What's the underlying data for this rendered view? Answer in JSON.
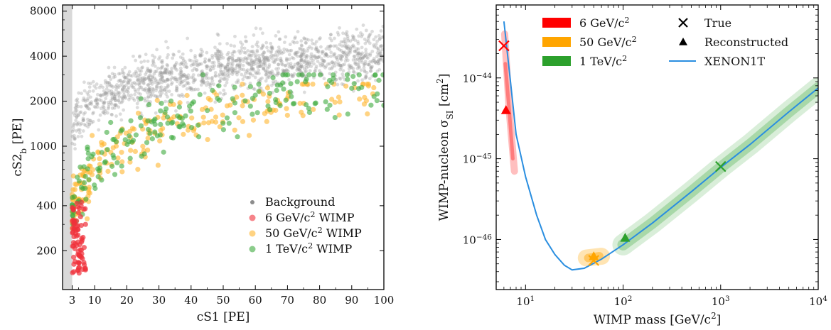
{
  "chart_data": [
    {
      "type": "scatter",
      "title": "",
      "xlabel": "cS1 [PE]",
      "ylabel": "cS2",
      "ylabel_sub": "b",
      "ylabel_unit": " [PE]",
      "xlim": [
        0,
        100
      ],
      "ylim_log": [
        110,
        8800
      ],
      "yscale": "log",
      "x_ticks": [
        3,
        10,
        20,
        30,
        40,
        50,
        60,
        70,
        80,
        90,
        100
      ],
      "y_ticks": [
        200,
        400,
        1000,
        2000,
        4000,
        8000
      ],
      "threshold_band_cs1": 3,
      "legend_position": "lower-right",
      "legend": [
        {
          "id": "bg",
          "pre": "Background",
          "sup": "",
          "post": "",
          "color": "#7f7f7f"
        },
        {
          "id": "w6",
          "pre": "6 GeV/c",
          "sup": "2",
          "post": " WIMP",
          "color": "#f0303a"
        },
        {
          "id": "w50",
          "pre": "50 GeV/c",
          "sup": "2",
          "post": " WIMP",
          "color": "#ffb62e"
        },
        {
          "id": "w1t",
          "pre": "1 TeV/c",
          "sup": "2",
          "post": " WIMP",
          "color": "#3daa3d"
        }
      ],
      "series": [
        {
          "name": "Background",
          "color": "#9a9a9a",
          "cs1_range": [
            3,
            100
          ],
          "cs2b_range": [
            1200,
            6000
          ],
          "n": 1500
        },
        {
          "name": "6 GeV/c² WIMP",
          "color": "#f0303a",
          "cs1_range": [
            3,
            8
          ],
          "cs2b_range": [
            130,
            420
          ],
          "n": 80
        },
        {
          "name": "50 GeV/c² WIMP",
          "color": "#ffb62e",
          "cs1_range": [
            3,
            97
          ],
          "cs2b_range": [
            350,
            2600
          ],
          "n": 220
        },
        {
          "name": "1 TeV/c² WIMP",
          "color": "#3daa3d",
          "cs1_range": [
            3,
            100
          ],
          "cs2b_range": [
            250,
            3000
          ],
          "n": 200
        }
      ]
    },
    {
      "type": "line",
      "title": "",
      "xlabel": "WIMP mass [GeV/c",
      "xlabel_sup": "2",
      "xlabel_end": "]",
      "ylabel": "WIMP-nucleon σ",
      "ylabel_sub": "SI",
      "ylabel_unit": " [cm",
      "ylabel_sup": "2",
      "ylabel_end": "]",
      "xscale": "log",
      "yscale": "log",
      "xlim": [
        5,
        10000
      ],
      "ylim": [
        2.4e-47,
        8e-44
      ],
      "x_ticks": [
        {
          "base": "10",
          "exp": "1",
          "v": 10
        },
        {
          "base": "10",
          "exp": "2",
          "v": 100
        },
        {
          "base": "10",
          "exp": "3",
          "v": 1000
        },
        {
          "base": "10",
          "exp": "4",
          "v": 10000
        }
      ],
      "y_ticks": [
        {
          "base": "10",
          "exp": "−44",
          "v": 1e-44
        },
        {
          "base": "10",
          "exp": "−45",
          "v": 1e-45
        },
        {
          "base": "10",
          "exp": "−46",
          "v": 1e-46
        }
      ],
      "legend_position": "top",
      "legend": [
        {
          "id": "l6",
          "pre": "6 GeV/c",
          "sup": "2",
          "color": "#ff0000",
          "kind": "patch"
        },
        {
          "id": "l50",
          "pre": "50 GeV/c",
          "sup": "2",
          "color": "#ffa500",
          "kind": "patch"
        },
        {
          "id": "l1t",
          "pre": "1 TeV/c",
          "sup": "2",
          "color": "#2ca02c",
          "kind": "patch"
        },
        {
          "id": "ltrue",
          "pre": "True",
          "sup": "",
          "color": "#000000",
          "kind": "x"
        },
        {
          "id": "lrec",
          "pre": "Reconstructed",
          "sup": "",
          "color": "#000000",
          "kind": "tri"
        },
        {
          "id": "lx1t",
          "pre": "XENON1T",
          "sup": "",
          "color": "#2a8ee0",
          "kind": "line"
        }
      ],
      "xenon1t_limit": {
        "color": "#2a8ee0",
        "points": [
          [
            6,
            5e-44
          ],
          [
            7,
            9e-45
          ],
          [
            8,
            2e-45
          ],
          [
            10,
            6e-46
          ],
          [
            13,
            2e-46
          ],
          [
            16,
            1e-46
          ],
          [
            20,
            6.5e-47
          ],
          [
            25,
            4.8e-47
          ],
          [
            30,
            4.2e-47
          ],
          [
            40,
            4.4e-47
          ],
          [
            60,
            5.7e-47
          ],
          [
            100,
            8.6e-47
          ],
          [
            200,
            1.6e-46
          ],
          [
            500,
            3.9e-46
          ],
          [
            1000,
            7.8e-46
          ],
          [
            2000,
            1.5e-45
          ],
          [
            5000,
            3.8e-45
          ],
          [
            10000,
            7.5e-45
          ]
        ]
      },
      "true_points": [
        {
          "mass": 6,
          "sigma": 2.5e-44,
          "color": "#ff0000"
        },
        {
          "mass": 50,
          "sigma": 5.5e-47,
          "color": "#ffa500"
        },
        {
          "mass": 1000,
          "sigma": 8e-46,
          "color": "#2ca02c"
        }
      ],
      "reconstructed_points": [
        {
          "mass": 6.3,
          "sigma": 4e-45,
          "color": "#ff0000"
        },
        {
          "mass": 50,
          "sigma": 6.2e-47,
          "color": "#ffa500"
        },
        {
          "mass": 105,
          "sigma": 1.05e-46,
          "color": "#2ca02c"
        }
      ]
    }
  ]
}
